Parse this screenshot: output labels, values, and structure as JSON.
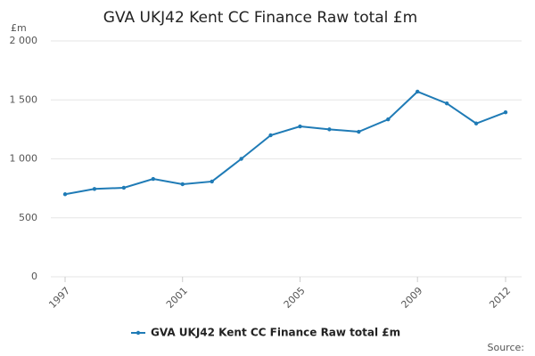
{
  "chart_data": {
    "type": "line",
    "title": "GVA UKJ42 Kent CC Finance Raw total £m",
    "y_label": "£m",
    "source": "Source:",
    "x": [
      1997,
      1998,
      1999,
      2000,
      2001,
      2002,
      2003,
      2004,
      2005,
      2006,
      2007,
      2008,
      2009,
      2010,
      2011,
      2012
    ],
    "series": [
      {
        "name": "GVA UKJ42 Kent CC Finance Raw total £m",
        "color": "#1f7bb6",
        "values": [
          700,
          745,
          755,
          830,
          785,
          808,
          1000,
          1200,
          1275,
          1250,
          1230,
          1335,
          1570,
          1470,
          1300,
          1395
        ]
      }
    ],
    "xlim": [
      1997,
      2012
    ],
    "xticks": [
      1997,
      2001,
      2005,
      2009,
      2012
    ],
    "ylim": [
      0,
      2000
    ],
    "yticks": [
      0,
      500,
      {
        "value": 1000,
        "label": "1 000"
      },
      {
        "value": 1500,
        "label": "1 500"
      },
      {
        "value": 2000,
        "label": "2 000"
      }
    ],
    "grid": true
  }
}
